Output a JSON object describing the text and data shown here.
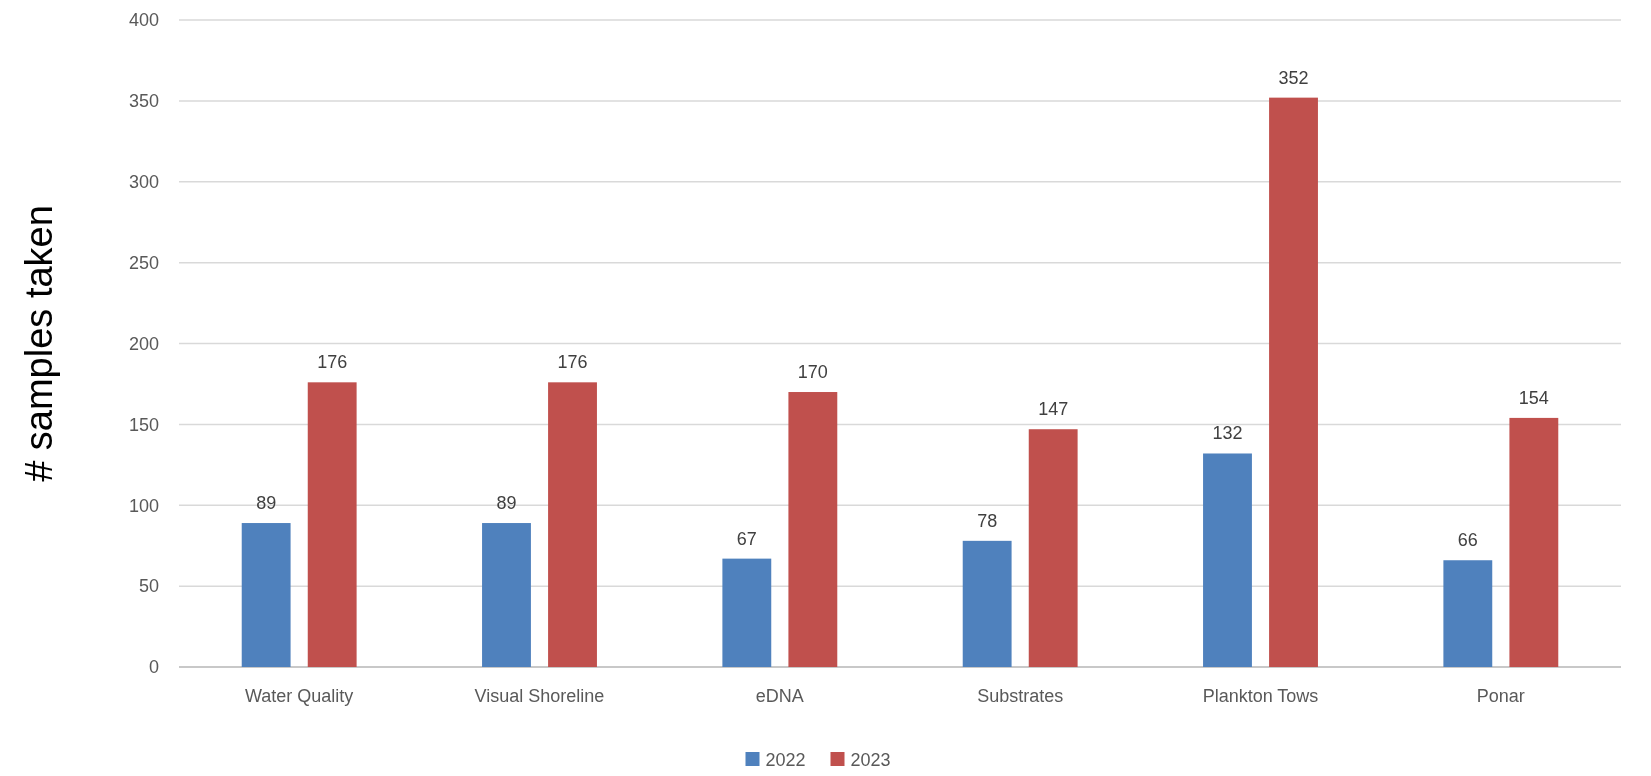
{
  "chart_data": {
    "type": "bar",
    "ylabel": "# samples taken",
    "categories": [
      "Water Quality",
      "Visual Shoreline",
      "eDNA",
      "Substrates",
      "Plankton Tows",
      "Ponar"
    ],
    "series": [
      {
        "name": "2022",
        "color": "#4f81bd",
        "values": [
          89,
          89,
          67,
          78,
          132,
          66
        ]
      },
      {
        "name": "2023",
        "color": "#c0504d",
        "values": [
          176,
          176,
          170,
          147,
          352,
          154
        ]
      }
    ],
    "ylim": [
      0,
      400
    ],
    "yticks": [
      0,
      50,
      100,
      150,
      200,
      250,
      300,
      350,
      400
    ],
    "grid": "y",
    "legend": "bottom",
    "data_labels": true
  }
}
